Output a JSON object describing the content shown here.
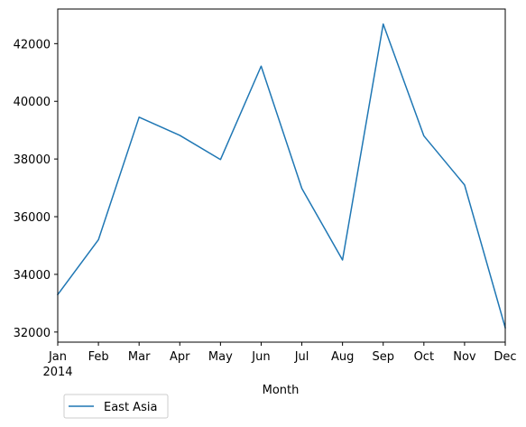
{
  "chart_data": {
    "type": "line",
    "title": "",
    "xlabel": "Month",
    "ylabel": "",
    "x_tick_labels": [
      "Jan",
      "Feb",
      "Mar",
      "Apr",
      "May",
      "Jun",
      "Jul",
      "Aug",
      "Sep",
      "Oct",
      "Nov",
      "Dec"
    ],
    "x_year_label": "2014",
    "x": [
      "2014-01",
      "2014-02",
      "2014-03",
      "2014-04",
      "2014-05",
      "2014-06",
      "2014-07",
      "2014-08",
      "2014-09",
      "2014-10",
      "2014-11",
      "2014-12"
    ],
    "series": [
      {
        "name": "East Asia",
        "color": "#1f77b4",
        "values": [
          33300,
          35200,
          39450,
          38820,
          37980,
          41220,
          36980,
          34500,
          42680,
          38800,
          37100,
          32150
        ]
      }
    ],
    "y_ticks": [
      32000,
      34000,
      36000,
      38000,
      40000,
      42000
    ],
    "ylim": [
      31650,
      43200
    ],
    "grid": false,
    "legend_position": "below-left"
  }
}
